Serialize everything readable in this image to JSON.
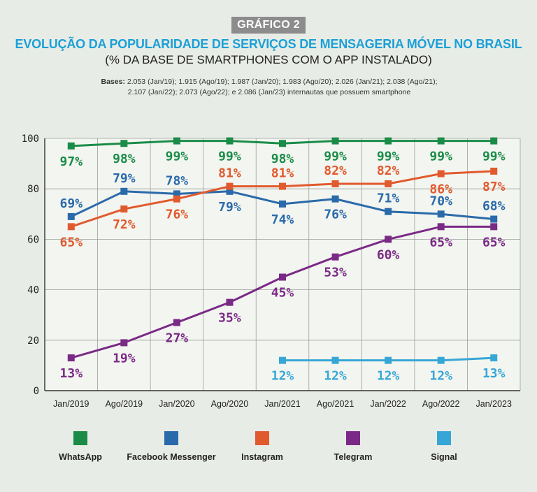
{
  "header": {
    "badge": "GRÁFICO 2",
    "title": "EVOLUÇÃO DA POPULARIDADE DE SERVIÇOS DE MENSAGERIA MÓVEL NO BRASIL",
    "subtitle": "(% DA BASE DE SMARTPHONES COM O APP INSTALADO)",
    "bases_label": "Bases:",
    "bases_line1": "2.053 (Jan/19); 1.915 (Ago/19); 1.987 (Jan/20); 1.983 (Ago/20); 2.026 (Jan/21); 2.038 (Ago/21);",
    "bases_line2": "2.107 (Jan/22); 2.073 (Ago/22); e 2.086 (Jan/23) internautas que possuem smartphone"
  },
  "chart_data": {
    "type": "line",
    "categories": [
      "Jan/2019",
      "Ago/2019",
      "Jan/2020",
      "Ago/2020",
      "Jan/2021",
      "Ago/2021",
      "Jan/2022",
      "Ago/2022",
      "Jan/2023"
    ],
    "ylim": [
      0,
      100
    ],
    "yticks": [
      0,
      20,
      40,
      60,
      80,
      100
    ],
    "grid": true,
    "legend_position": "bottom",
    "series": [
      {
        "name": "WhatsApp",
        "color": "#1a8c48",
        "values": [
          97,
          98,
          99,
          99,
          98,
          99,
          99,
          99,
          99
        ],
        "labels": [
          "97%",
          "98%",
          "99%",
          "99%",
          "98%",
          "99%",
          "99%",
          "99%",
          "99%"
        ],
        "label_pos": [
          "below",
          "below",
          "below",
          "below",
          "below",
          "below",
          "below",
          "below",
          "below"
        ]
      },
      {
        "name": "Facebook Messenger",
        "color": "#2a6aaa",
        "values": [
          69,
          79,
          78,
          79,
          74,
          76,
          71,
          70,
          68
        ],
        "labels": [
          "69%",
          "79%",
          "78%",
          "79%",
          "74%",
          "76%",
          "71%",
          "70%",
          "68%"
        ],
        "label_pos": [
          "above",
          "above",
          "above",
          "below",
          "below",
          "below",
          "above",
          "above",
          "above"
        ]
      },
      {
        "name": "Instagram",
        "color": "#e15a2e",
        "values": [
          65,
          72,
          76,
          81,
          81,
          82,
          82,
          86,
          87
        ],
        "labels": [
          "65%",
          "72%",
          "76%",
          "81%",
          "81%",
          "82%",
          "82%",
          "86%",
          "87%"
        ],
        "label_pos": [
          "below",
          "below",
          "below",
          "above",
          "above",
          "above",
          "above",
          "below",
          "below"
        ]
      },
      {
        "name": "Telegram",
        "color": "#7a2a86",
        "values": [
          13,
          19,
          27,
          35,
          45,
          53,
          60,
          65,
          65
        ],
        "labels": [
          "13%",
          "19%",
          "27%",
          "35%",
          "45%",
          "53%",
          "60%",
          "65%",
          "65%"
        ],
        "label_pos": [
          "below",
          "below",
          "below",
          "below",
          "below",
          "below",
          "below",
          "below",
          "below"
        ]
      },
      {
        "name": "Signal",
        "color": "#36a6d6",
        "values": [
          null,
          null,
          null,
          null,
          12,
          12,
          12,
          12,
          13
        ],
        "labels": [
          "",
          "",
          "",
          "",
          "12%",
          "12%",
          "12%",
          "12%",
          "13%"
        ],
        "label_pos": [
          "below",
          "below",
          "below",
          "below",
          "below",
          "below",
          "below",
          "below",
          "below"
        ]
      }
    ]
  }
}
